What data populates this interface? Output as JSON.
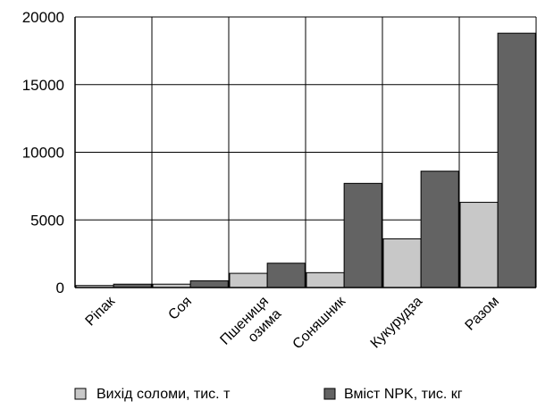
{
  "chart_data": {
    "type": "bar",
    "categories": [
      "Ріпак",
      "Соя",
      "Пшениця озима",
      "Соняшник",
      "Кукурудза",
      "Разом"
    ],
    "category_lines": [
      [
        "Ріпак"
      ],
      [
        "Соя"
      ],
      [
        "Пшениця",
        "озима"
      ],
      [
        "Соняшник"
      ],
      [
        "Кукурудза"
      ],
      [
        "Разом"
      ]
    ],
    "series": [
      {
        "name": "Вихід соломи, тис. т",
        "color": "#c8c8c8",
        "values": [
          150,
          250,
          1050,
          1100,
          3600,
          6300
        ]
      },
      {
        "name": "Вміст NPK, тис. кг",
        "color": "#636363",
        "values": [
          250,
          500,
          1800,
          7700,
          8600,
          18800
        ]
      }
    ],
    "title": "",
    "xlabel": "",
    "ylabel": "",
    "ylim": [
      0,
      20000
    ],
    "yticks": [
      0,
      5000,
      10000,
      15000,
      20000
    ],
    "grid": true,
    "legend_position": "bottom"
  }
}
